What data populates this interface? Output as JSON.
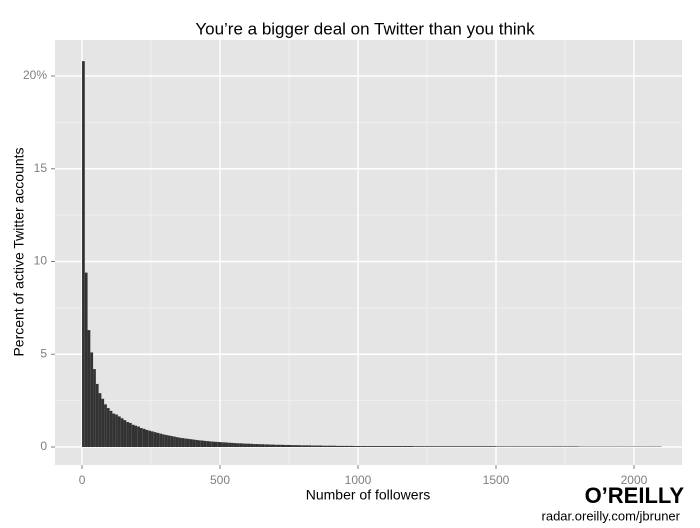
{
  "chart_data": {
    "type": "histogram",
    "title": "You’re a bigger deal on Twitter than you think",
    "x_label": "Number of followers",
    "y_label": "Percent of active Twitter accounts",
    "logo": "O’REILLY",
    "source": "radar.oreilly.com/jbruner",
    "color": "#333333",
    "grid": true,
    "xlim": [
      -98,
      2174
    ],
    "ylim": [
      -0.97,
      21.94
    ],
    "xticks": [
      0,
      500,
      1000,
      1500,
      2000
    ],
    "yticks": [
      0,
      5,
      10,
      15,
      {
        "value": 20,
        "label": "20%"
      }
    ],
    "bins": [
      0,
      10,
      20,
      30,
      40,
      50,
      60,
      70,
      80,
      90,
      100,
      110,
      120,
      130,
      140,
      150,
      160,
      170,
      180,
      190,
      200,
      210,
      220,
      230,
      240,
      250,
      260,
      270,
      280,
      290,
      300,
      310,
      320,
      330,
      340,
      350,
      360,
      370,
      380,
      390,
      400,
      410,
      420,
      430,
      440,
      450,
      460,
      470,
      480,
      490,
      500,
      510,
      520,
      530,
      540,
      550,
      560,
      570,
      580,
      590,
      600,
      610,
      620,
      630,
      640,
      650,
      660,
      670,
      680,
      690,
      700,
      710,
      720,
      730,
      740,
      750,
      760,
      770,
      780,
      790,
      800,
      810,
      820,
      830,
      840,
      850,
      860,
      870,
      880,
      890,
      900,
      910,
      920,
      930,
      940,
      950,
      960,
      970,
      980,
      990,
      1000,
      1010,
      1020,
      1030,
      1040,
      1050,
      1060,
      1070,
      1080,
      1090,
      1100,
      1110,
      1120,
      1130,
      1140,
      1150,
      1160,
      1170,
      1180,
      1190,
      1200,
      1210,
      1220,
      1230,
      1240,
      1250,
      1260,
      1270,
      1280,
      1290,
      1300,
      1310,
      1320,
      1330,
      1340,
      1350,
      1360,
      1370,
      1380,
      1390,
      1400,
      1410,
      1420,
      1430,
      1440,
      1450,
      1460,
      1470,
      1480,
      1490,
      1500,
      1510,
      1520,
      1530,
      1540,
      1550,
      1560,
      1570,
      1580,
      1590,
      1600,
      1610,
      1620,
      1630,
      1640,
      1650,
      1660,
      1670,
      1680,
      1690,
      1700,
      1710,
      1720,
      1730,
      1740,
      1750,
      1760,
      1770,
      1780,
      1790,
      1800,
      1810,
      1820,
      1830,
      1840,
      1850,
      1860,
      1870,
      1880,
      1890,
      1900,
      1910,
      1920,
      1930,
      1940,
      1950,
      1960,
      1970,
      1980,
      1990,
      2000,
      2010,
      2020,
      2030,
      2040,
      2050,
      2060,
      2070,
      2080,
      2090,
      2100
    ],
    "values": [
      20.8,
      9.4,
      6.3,
      5.1,
      4.2,
      3.4,
      2.9,
      2.6,
      2.3,
      2.1,
      1.95,
      1.8,
      1.75,
      1.65,
      1.55,
      1.45,
      1.35,
      1.3,
      1.2,
      1.15,
      1.1,
      1.02,
      0.98,
      0.92,
      0.88,
      0.84,
      0.8,
      0.76,
      0.72,
      0.68,
      0.65,
      0.62,
      0.59,
      0.56,
      0.53,
      0.5,
      0.48,
      0.46,
      0.44,
      0.42,
      0.4,
      0.38,
      0.36,
      0.35,
      0.33,
      0.32,
      0.3,
      0.29,
      0.28,
      0.27,
      0.26,
      0.25,
      0.24,
      0.23,
      0.22,
      0.21,
      0.2,
      0.2,
      0.19,
      0.18,
      0.18,
      0.17,
      0.16,
      0.16,
      0.15,
      0.15,
      0.14,
      0.14,
      0.13,
      0.13,
      0.12,
      0.12,
      0.12,
      0.11,
      0.11,
      0.11,
      0.1,
      0.1,
      0.1,
      0.09,
      0.09,
      0.09,
      0.09,
      0.08,
      0.08,
      0.08,
      0.08,
      0.07,
      0.07,
      0.07,
      0.07,
      0.07,
      0.06,
      0.06,
      0.06,
      0.06,
      0.06,
      0.06,
      0.05,
      0.05,
      0.05,
      0.05,
      0.05,
      0.05,
      0.05,
      0.05,
      0.05,
      0.05,
      0.05,
      0.05,
      0.05,
      0.05,
      0.05,
      0.05,
      0.05,
      0.05,
      0.05,
      0.05,
      0.05,
      0.05,
      0.04,
      0.04,
      0.04,
      0.04,
      0.04,
      0.04,
      0.04,
      0.04,
      0.04,
      0.04,
      0.04,
      0.04,
      0.04,
      0.04,
      0.04,
      0.04,
      0.04,
      0.04,
      0.04,
      0.04,
      0.04,
      0.04,
      0.04,
      0.04,
      0.04,
      0.04,
      0.04,
      0.04,
      0.04,
      0.04,
      0.03,
      0.03,
      0.03,
      0.03,
      0.03,
      0.03,
      0.03,
      0.03,
      0.03,
      0.03,
      0.03,
      0.03,
      0.03,
      0.03,
      0.03,
      0.03,
      0.03,
      0.03,
      0.03,
      0.03,
      0.03,
      0.03,
      0.03,
      0.03,
      0.03,
      0.03,
      0.03,
      0.03,
      0.03,
      0.03,
      0.02,
      0.02,
      0.02,
      0.02,
      0.02,
      0.02,
      0.02,
      0.02,
      0.02,
      0.02,
      0.02,
      0.02,
      0.02,
      0.02,
      0.02,
      0.02,
      0.02,
      0.02,
      0.02,
      0.02,
      0.02,
      0.02,
      0.02,
      0.02,
      0.02,
      0.02,
      0.02,
      0.02,
      0.02,
      0.02
    ]
  }
}
